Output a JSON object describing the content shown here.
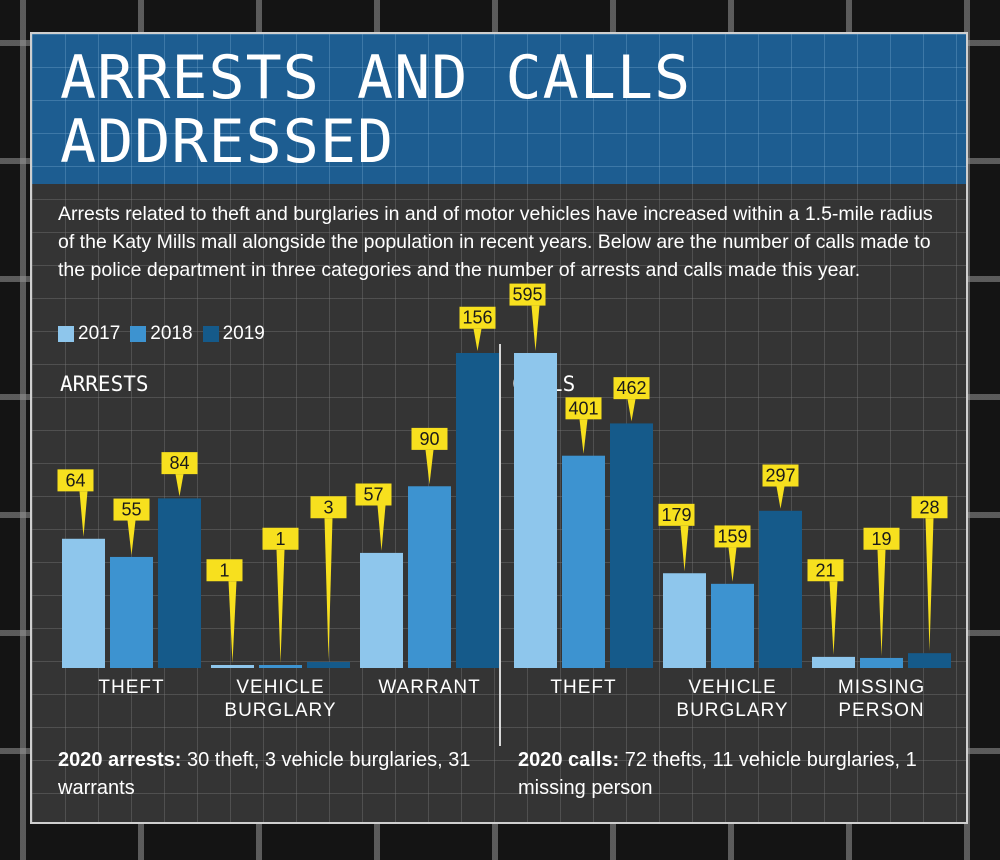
{
  "title": "ARRESTS AND CALLS ADDRESSED",
  "description": "Arrests related to theft and burglaries in and of motor vehicles have increased within a 1.5-mile radius of the Katy Mills mall alongside the population in recent years. Below are the number of calls made to the police department in three categories and the number of arrests and calls made this year.",
  "colors": {
    "title_band": "#1d5d91",
    "series_2017": "#8ec6ec",
    "series_2018": "#3d93d0",
    "series_2019": "#155a8a",
    "callout": "#f7e01e",
    "panel": "#343434"
  },
  "footnotes": {
    "arrests_label": "2020 arrests:",
    "arrests_text": " 30 theft, 3 vehicle burglaries, 31 warrants",
    "calls_label": "2020 calls:",
    "calls_text": " 72 thefts, 11 vehicle burglaries, 1 missing person"
  },
  "chart_data": [
    {
      "type": "bar",
      "title": "ARRESTS",
      "categories": [
        "THEFT",
        "VEHICLE BURGLARY",
        "WARRANT"
      ],
      "legend_placement": "top-left",
      "series": [
        {
          "name": "2017",
          "values": [
            64,
            1,
            57
          ]
        },
        {
          "name": "2018",
          "values": [
            55,
            1,
            90
          ]
        },
        {
          "name": "2019",
          "values": [
            84,
            3,
            156
          ]
        }
      ],
      "ylim": [
        0,
        156
      ]
    },
    {
      "type": "bar",
      "title": "CALLS",
      "categories": [
        "THEFT",
        "VEHICLE BURGLARY",
        "MISSING PERSON"
      ],
      "legend_placement": "top-left",
      "series": [
        {
          "name": "2017",
          "values": [
            595,
            179,
            21
          ]
        },
        {
          "name": "2018",
          "values": [
            401,
            159,
            19
          ]
        },
        {
          "name": "2019",
          "values": [
            462,
            297,
            28
          ]
        }
      ],
      "ylim": [
        0,
        595
      ]
    }
  ]
}
